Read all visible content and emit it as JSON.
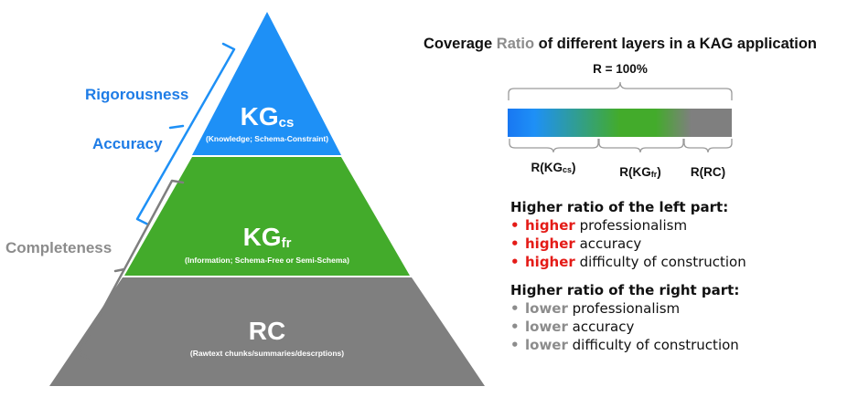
{
  "colors": {
    "kgcs": "#1E90F6",
    "kgfr": "#43AB2B",
    "rc": "#7F7F7F",
    "red": "#E41B17",
    "gray_text": "#8C8C8C",
    "blue_text": "#1E7CE6"
  },
  "pyramid": {
    "kgcs": {
      "main": "KG",
      "sub": "cs",
      "desc": "(Knowledge; Schema-Constraint)"
    },
    "kgfr": {
      "main": "KG",
      "sub": "fr",
      "desc": "(Information; Schema-Free or Semi-Schema)"
    },
    "rc": {
      "main": "RC",
      "desc": "(Rawtext chunks/summaries/descrptions)"
    }
  },
  "left_labels": {
    "rigorousness": "Rigorousness",
    "accuracy": "Accuracy",
    "completeness": "Completeness"
  },
  "coverage": {
    "title_before": "Coverage ",
    "title_ratio": "Ratio",
    "title_after": " of different layers in a KAG application",
    "total": "R = 100%",
    "labels": [
      {
        "main": "R(KG",
        "sub": "cs",
        "close": ")"
      },
      {
        "main": "R(KG",
        "sub": "fr",
        "close": ")"
      },
      {
        "main": "R(RC)",
        "sub": "",
        "close": ""
      }
    ]
  },
  "left_part": {
    "heading": "Higher ratio of the left part:",
    "bullet": "•",
    "items": [
      {
        "kw": "higher",
        "rest": " professionalism"
      },
      {
        "kw": "higher",
        "rest": " accuracy"
      },
      {
        "kw": "higher",
        "rest": " difficulty of construction"
      }
    ]
  },
  "right_part": {
    "heading": "Higher ratio of the right part:",
    "bullet": "•",
    "items": [
      {
        "kw": "lower",
        "rest": " professionalism"
      },
      {
        "kw": "lower",
        "rest": " accuracy"
      },
      {
        "kw": "lower",
        "rest": " difficulty of construction"
      }
    ]
  }
}
